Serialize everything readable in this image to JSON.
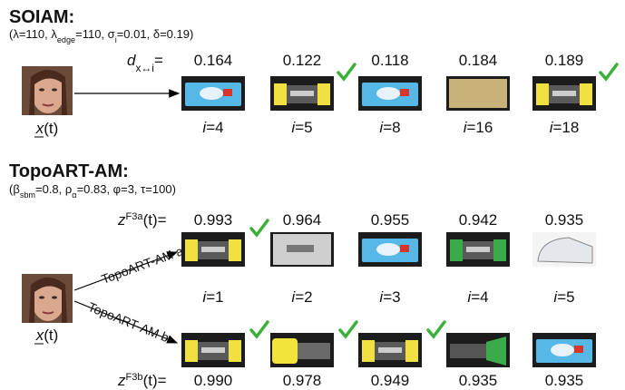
{
  "soiam": {
    "title": "SOIAM:",
    "params": [
      {
        "text": "(λ=110, λ"
      },
      {
        "text": "edge",
        "sub": true
      },
      {
        "text": "=110, σ"
      },
      {
        "text": "i",
        "sub": true
      },
      {
        "text": "=0.01, δ=0.19)"
      }
    ],
    "input_label": "x(t)",
    "distance_label": [
      {
        "text": "d"
      },
      {
        "text": "x↔i",
        "sub": true
      },
      {
        "text": "="
      }
    ],
    "items": [
      {
        "distance": "0.164",
        "index": "i=4",
        "match": false
      },
      {
        "distance": "0.122",
        "index": "i=5",
        "match": true
      },
      {
        "distance": "0.118",
        "index": "i=8",
        "match": false
      },
      {
        "distance": "0.184",
        "index": "i=16",
        "match": false
      },
      {
        "distance": "0.189",
        "index": "i=18",
        "match": true
      }
    ]
  },
  "topoart": {
    "title": "TopoART-AM:",
    "params": [
      {
        "text": "(β"
      },
      {
        "text": "sbm",
        "sub": true
      },
      {
        "text": "=0.8, ρ"
      },
      {
        "text": "α",
        "sub": true
      },
      {
        "text": "=0.83, φ=3, τ=100)"
      }
    ],
    "input_label": "x(t)",
    "arrow_labels": [
      "TopoART-AM a",
      "TopoART-AM b"
    ],
    "score_label_a": [
      {
        "text": "z"
      },
      {
        "text": "F3",
        "sup": true
      },
      {
        "text": "a",
        "sup": true
      },
      {
        "text": "(t)="
      }
    ],
    "score_label_b": [
      {
        "text": "z"
      },
      {
        "text": "F3",
        "sup": true
      },
      {
        "text": "b",
        "sup": true
      },
      {
        "text": "(t)="
      }
    ],
    "indices": [
      "i=1",
      "i=2",
      "i=3",
      "i=4",
      "i=5"
    ],
    "items_a": [
      {
        "score": "0.993",
        "match": true
      },
      {
        "score": "0.964",
        "match": false
      },
      {
        "score": "0.955",
        "match": false
      },
      {
        "score": "0.942",
        "match": false
      },
      {
        "score": "0.935",
        "match": false
      }
    ],
    "items_b": [
      {
        "score": "0.990",
        "match": true
      },
      {
        "score": "0.978",
        "match": true
      },
      {
        "score": "0.949",
        "match": true
      },
      {
        "score": "0.935",
        "match": false
      },
      {
        "score": "0.935",
        "match": false
      }
    ]
  }
}
